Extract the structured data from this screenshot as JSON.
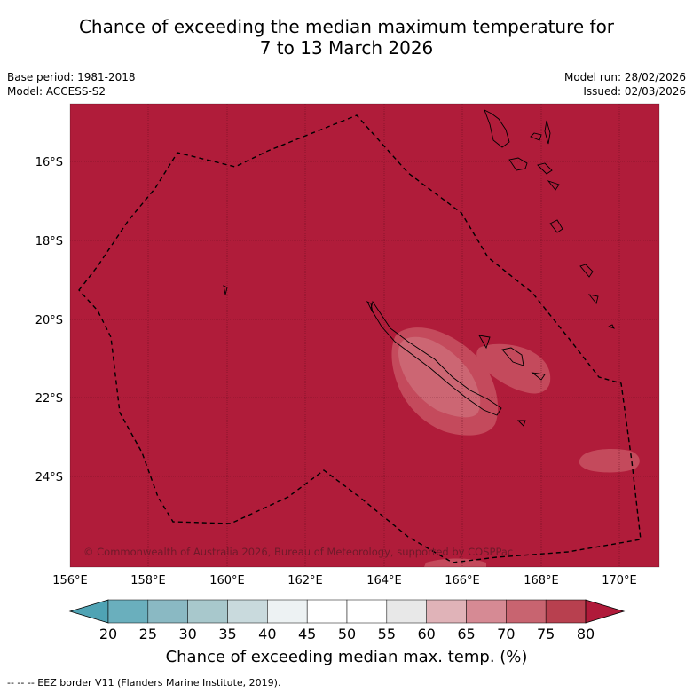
{
  "title_line1": "Chance of exceeding the median maximum temperature for",
  "title_line2": "7 to 13 March 2026",
  "base_period": "Base period: 1981-2018",
  "model": "Model: ACCESS-S2",
  "model_run": "Model run: 28/02/2026",
  "issued": "Issued: 02/03/2026",
  "copyright": "© Commonwealth of Australia 2026, Bureau of Meteorology, supported by COSPPac",
  "lat_ticks": [
    "16°S",
    "18°S",
    "20°S",
    "22°S",
    "24°S"
  ],
  "lon_ticks": [
    "156°E",
    "158°E",
    "160°E",
    "162°E",
    "164°E",
    "166°E",
    "168°E",
    "170°E"
  ],
  "colorbar": {
    "ticks": [
      "20",
      "25",
      "30",
      "35",
      "40",
      "45",
      "50",
      "55",
      "60",
      "65",
      "70",
      "75",
      "80"
    ],
    "colors": [
      "#4fa3b4",
      "#6aafbd",
      "#8ab9c3",
      "#a8c8cc",
      "#c9dadd",
      "#edf2f3",
      "#ffffff",
      "#ffffff",
      "#e8e8e8",
      "#e0b3b8",
      "#d68a94",
      "#c86470",
      "#b8404f",
      "#b01a3a"
    ],
    "title": "Chance of exceeding median max. temp. (%)"
  },
  "background_color": "#b01c3a",
  "footnote": "--  --  -- EEZ border V11 (Flanders Marine Institute, 2019)."
}
